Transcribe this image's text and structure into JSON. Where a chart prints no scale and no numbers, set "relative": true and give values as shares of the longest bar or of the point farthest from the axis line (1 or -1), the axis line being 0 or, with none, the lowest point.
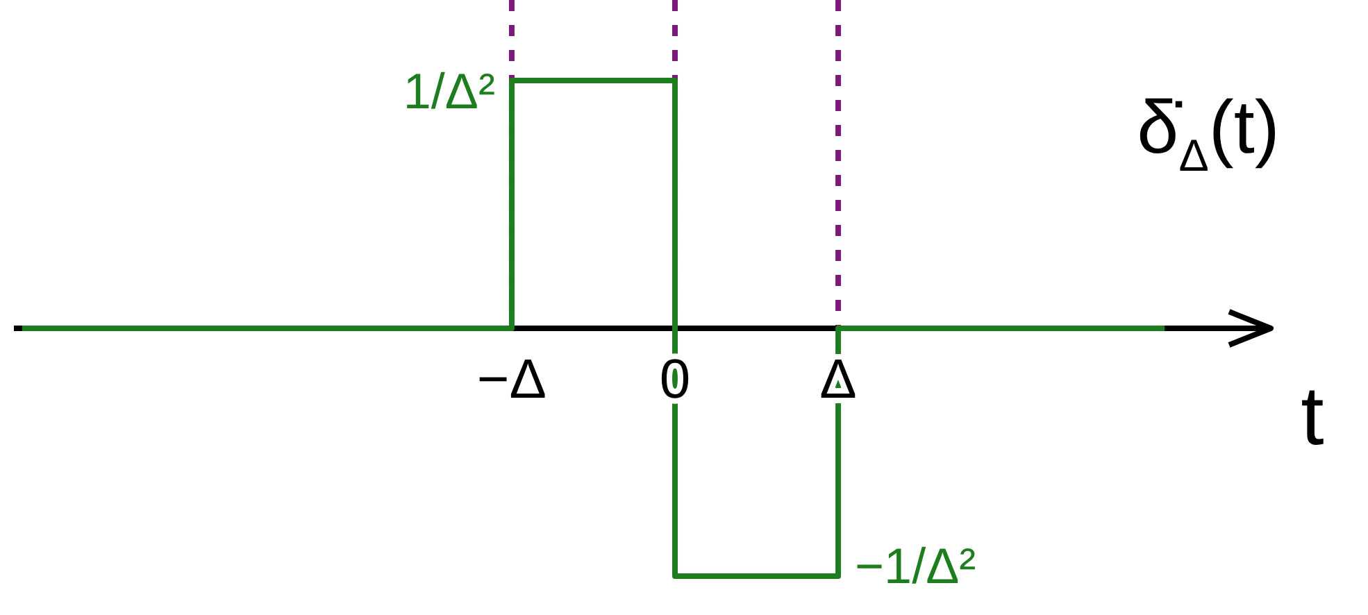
{
  "chart_data": {
    "type": "step",
    "title": "δ̇$_{Δ}$(t)",
    "xlabel": "t",
    "relative": true,
    "categories": [
      null,
      null,
      null,
      "−Δ",
      "0",
      "Δ",
      null,
      null
    ],
    "series": [
      {
        "color": "#1e7d1e",
        "values": [
          0,
          0,
          0,
          1,
          -1,
          0,
          0,
          0
        ]
      }
    ],
    "ref_lines": [
      {
        "axis": "x",
        "value": "−Δ",
        "color": "#7b1a7b",
        "line_style": "dashed"
      },
      {
        "axis": "x",
        "value": "0",
        "color": "#7b1a7b",
        "line_style": "dashed"
      },
      {
        "axis": "x",
        "value": "Δ",
        "color": "#7b1a7b",
        "line_style": "dashed"
      }
    ],
    "annotations": [
      {
        "text": "1/Δ²",
        "x": "−Δ",
        "y": 1
      },
      {
        "text": "−1/Δ²",
        "x": "Δ",
        "y": -1
      }
    ],
    "marker": "none",
    "line_style": "solid",
    "grid": false
  }
}
